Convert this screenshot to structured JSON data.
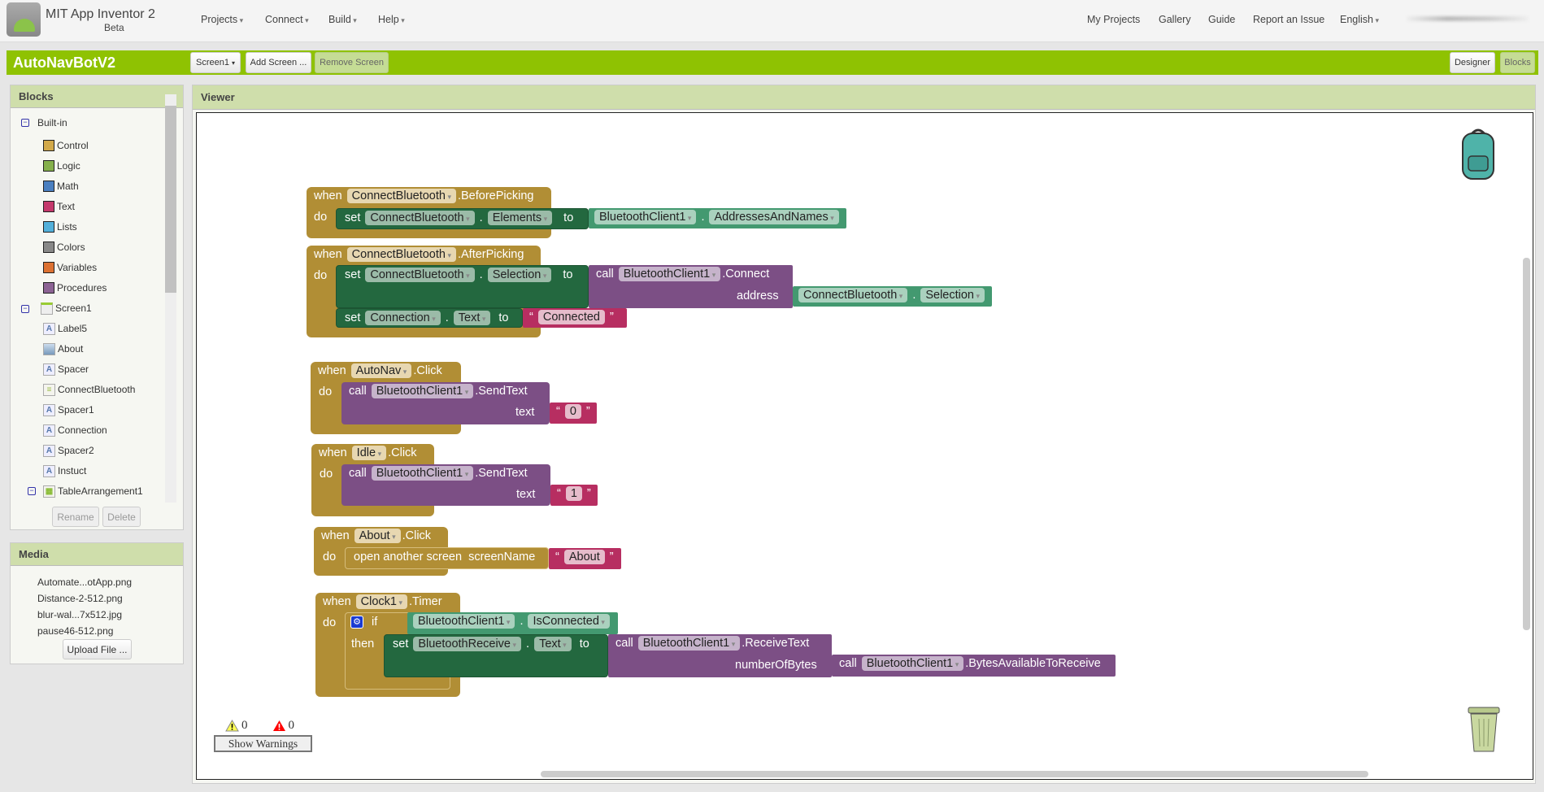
{
  "header": {
    "app_title": "MIT App Inventor 2",
    "beta": "Beta",
    "menus": [
      "Projects",
      "Connect",
      "Build",
      "Help"
    ],
    "right_links": [
      "My Projects",
      "Gallery",
      "Guide",
      "Report an Issue"
    ],
    "language": "English"
  },
  "toolbar": {
    "project": "AutoNavBotV2",
    "screen": "Screen1",
    "add_screen": "Add Screen ...",
    "remove_screen": "Remove Screen",
    "designer": "Designer",
    "blocks": "Blocks"
  },
  "blocks_panel": {
    "title": "Blocks",
    "builtin": "Built-in",
    "builtin_items": [
      {
        "label": "Control",
        "color": "#d2a94a"
      },
      {
        "label": "Logic",
        "color": "#85b04c"
      },
      {
        "label": "Math",
        "color": "#4a7fc0"
      },
      {
        "label": "Text",
        "color": "#c4396c"
      },
      {
        "label": "Lists",
        "color": "#53b0da"
      },
      {
        "label": "Colors",
        "color": "#888888"
      },
      {
        "label": "Variables",
        "color": "#dc7132"
      },
      {
        "label": "Procedures",
        "color": "#8c6394"
      }
    ],
    "screen": "Screen1",
    "components": [
      {
        "label": "Label5",
        "icon": "label-icon"
      },
      {
        "label": "About",
        "icon": "button-icon"
      },
      {
        "label": "Spacer",
        "icon": "label-icon"
      },
      {
        "label": "ConnectBluetooth",
        "icon": "listpicker-icon"
      },
      {
        "label": "Spacer1",
        "icon": "label-icon"
      },
      {
        "label": "Connection",
        "icon": "label-icon"
      },
      {
        "label": "Spacer2",
        "icon": "label-icon"
      },
      {
        "label": "Instuct",
        "icon": "label-icon"
      },
      {
        "label": "TableArrangement1",
        "icon": "table-arrangement-icon"
      }
    ],
    "rename": "Rename",
    "delete": "Delete"
  },
  "media": {
    "title": "Media",
    "files": [
      "Automate...otApp.png",
      "Distance-2-512.png",
      "blur-wal...7x512.jpg",
      "pause46-512.png"
    ],
    "upload": "Upload File ..."
  },
  "viewer": {
    "title": "Viewer",
    "warnings_count": "0",
    "errors_count": "0",
    "show_warnings": "Show Warnings"
  },
  "kw": {
    "when": "when",
    "do": "do",
    "set": "set",
    "to": "to",
    "call": "call",
    "dot": ".",
    "then": "then",
    "if": "if",
    "address": "address",
    "text": "text",
    "numberOfBytes": "numberOfBytes",
    "open": "open another screen  screenName",
    "lq": "“",
    "rq": "”"
  },
  "code": {
    "b1": {
      "comp": "ConnectBluetooth",
      "event": ".BeforePicking",
      "set_comp": "ConnectBluetooth",
      "set_prop": "Elements",
      "get_comp": "BluetoothClient1",
      "get_prop": "AddressesAndNames"
    },
    "b2": {
      "comp": "ConnectBluetooth",
      "event": ".AfterPicking",
      "set_comp": "ConnectBluetooth",
      "set_prop": "Selection",
      "call_comp": "BluetoothClient1",
      "call_method": ".Connect",
      "arg_comp": "ConnectBluetooth",
      "arg_prop": "Selection",
      "set2_comp": "Connection",
      "set2_prop": "Text",
      "literal": "Connected"
    },
    "b3": {
      "comp": "AutoNav",
      "event": ".Click",
      "call_comp": "BluetoothClient1",
      "call_method": ".SendText",
      "literal": "0"
    },
    "b4": {
      "comp": "Idle",
      "event": ".Click",
      "call_comp": "BluetoothClient1",
      "call_method": ".SendText",
      "literal": "1"
    },
    "b5": {
      "comp": "About",
      "event": ".Click",
      "literal": "About"
    },
    "b6": {
      "comp": "Clock1",
      "event": ".Timer",
      "cond_comp": "BluetoothClient1",
      "cond_prop": "IsConnected",
      "set_comp": "BluetoothReceive",
      "set_prop": "Text",
      "call_comp": "BluetoothClient1",
      "call_method": ".ReceiveText",
      "arg_comp": "BluetoothClient1",
      "arg_method": ".BytesAvailableToReceive"
    }
  }
}
